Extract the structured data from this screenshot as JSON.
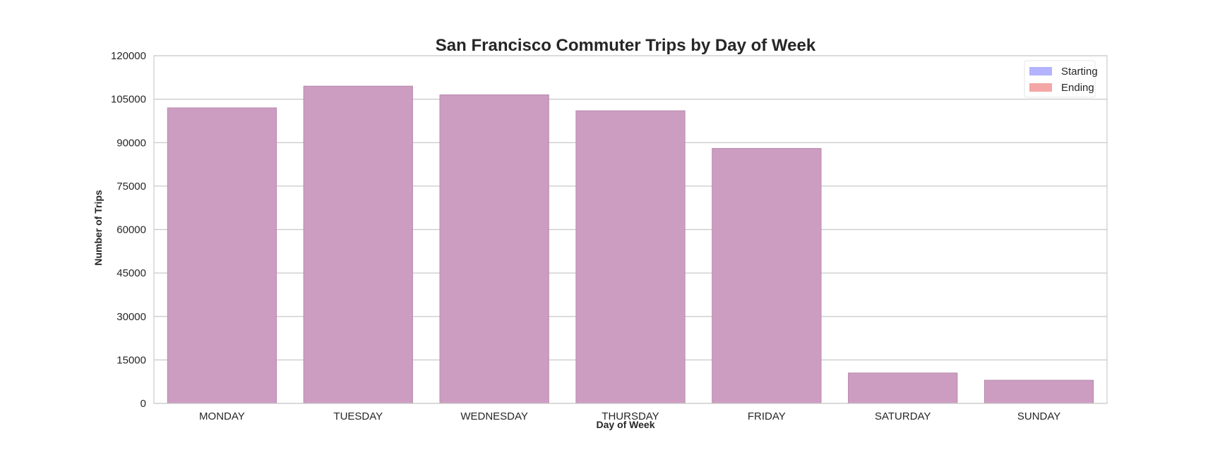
{
  "chart_data": {
    "type": "bar",
    "title": "San Francisco Commuter Trips by Day of Week",
    "xlabel": "Day of Week",
    "ylabel": "Number of Trips",
    "ylim": [
      0,
      120000
    ],
    "yticks": [
      0,
      15000,
      30000,
      45000,
      60000,
      75000,
      90000,
      105000,
      120000
    ],
    "categories": [
      "MONDAY",
      "TUESDAY",
      "WEDNESDAY",
      "THURSDAY",
      "FRIDAY",
      "SATURDAY",
      "SUNDAY"
    ],
    "series": [
      {
        "name": "Starting",
        "color": "#b3b3ff",
        "values": [
          102000,
          109500,
          106500,
          101000,
          88000,
          10500,
          8000
        ]
      },
      {
        "name": "Ending",
        "color": "#f4a6a6",
        "values": [
          102000,
          109500,
          106500,
          101000,
          88000,
          10500,
          8000
        ]
      }
    ],
    "bar_overlap_color": "#cc9dc1",
    "grid": true,
    "legend_position": "top-right"
  }
}
